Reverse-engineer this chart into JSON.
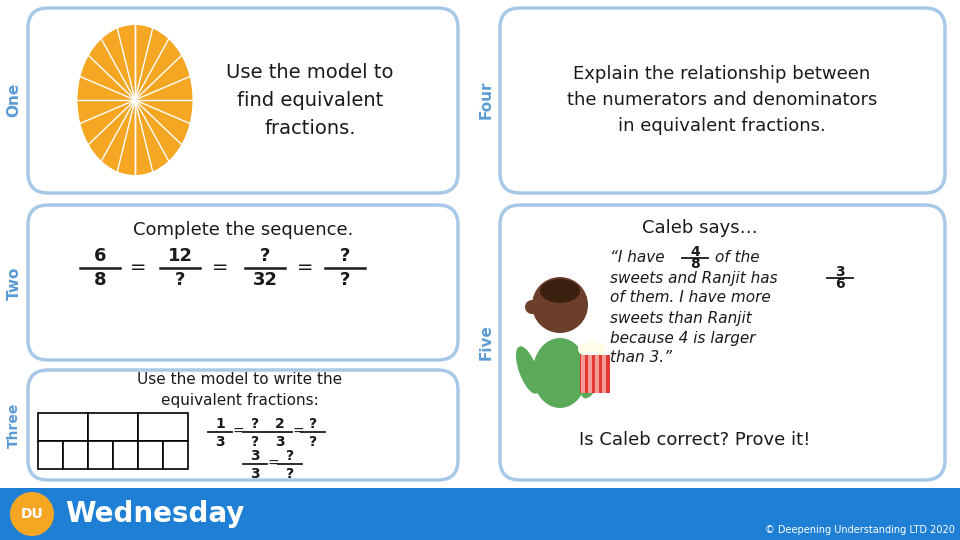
{
  "bg_color": "#ffffff",
  "accent_color": "#a8c8e8",
  "blue_bar_color": "#1e7fd4",
  "orange_color": "#f5a623",
  "text_dark": "#1a1a1a",
  "text_blue": "#5b9bd5",
  "box1_text": "Use the model to\nfind equivalent\nfractions.",
  "box2_text": "Explain the relationship between\nthe numerators and denominators\nin equivalent fractions.",
  "box3_title": "Complete the sequence.",
  "box4_title": "Caleb says…",
  "box5_title": "Use the model to write the\nequivalent fractions:",
  "label_one": "One",
  "label_two": "Two",
  "label_three": "Three",
  "label_four": "Four",
  "label_five": "Five",
  "footer_text": "Wednesday",
  "copyright_text": "© Deepening Understanding LTD 2020",
  "skin_color": "#6B3F2A",
  "shirt_color": "#5aaa5a",
  "red_box_color": "#e53935"
}
